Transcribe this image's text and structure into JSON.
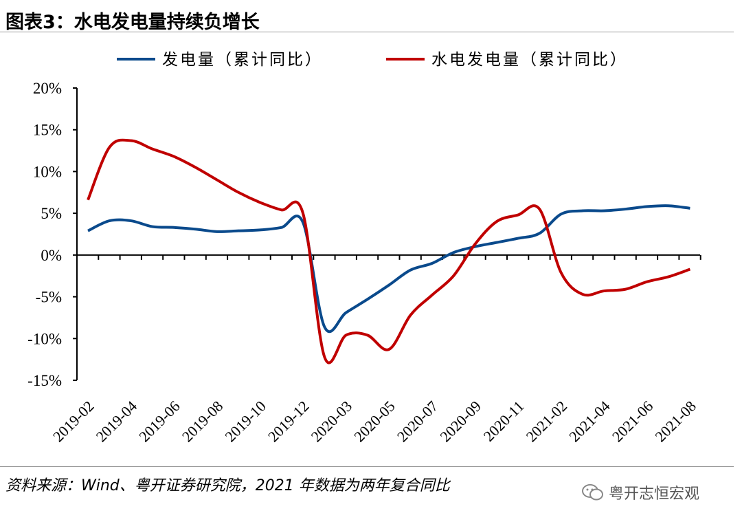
{
  "header": {
    "title": "图表3：水电发电量持续负增长"
  },
  "footer": {
    "source": "资料来源：Wind、粤开证券研究院，2021 年数据为两年复合同比",
    "watermark": "粤开志恒宏观"
  },
  "chart_data": {
    "type": "line",
    "title": "图表3：水电发电量持续负增长",
    "xlabel": "",
    "ylabel": "",
    "ylim": [
      -15,
      20
    ],
    "yticks": [
      "20%",
      "15%",
      "10%",
      "5%",
      "0%",
      "-5%",
      "-10%",
      "-15%"
    ],
    "ytick_values": [
      20,
      15,
      10,
      5,
      0,
      -5,
      -10,
      -15
    ],
    "legend_position": "top",
    "x": [
      "2019-02",
      "2019-03",
      "2019-04",
      "2019-05",
      "2019-06",
      "2019-07",
      "2019-08",
      "2019-09",
      "2019-10",
      "2019-11",
      "2019-12",
      "2020-02",
      "2020-03",
      "2020-04",
      "2020-05",
      "2020-06",
      "2020-07",
      "2020-08",
      "2020-09",
      "2020-10",
      "2020-11",
      "2020-12",
      "2021-02",
      "2021-03",
      "2021-04",
      "2021-05",
      "2021-06",
      "2021-07",
      "2021-08"
    ],
    "xtick_labels": [
      "2019-02",
      "2019-04",
      "2019-06",
      "2019-08",
      "2019-10",
      "2019-12",
      "2020-03",
      "2020-05",
      "2020-07",
      "2020-09",
      "2020-11",
      "2021-02",
      "2021-04",
      "2021-06",
      "2021-08"
    ],
    "series": [
      {
        "name": "发电量（累计同比）",
        "color": "#0a4a8c",
        "values": [
          2.9,
          4.1,
          4.1,
          3.4,
          3.3,
          3.1,
          2.8,
          2.9,
          3.0,
          3.3,
          3.9,
          -8.6,
          -6.9,
          -5.3,
          -3.6,
          -1.8,
          -1.0,
          0.3,
          1.0,
          1.5,
          2.0,
          2.6,
          4.9,
          5.3,
          5.3,
          5.5,
          5.8,
          5.9,
          5.6
        ]
      },
      {
        "name": "水电发电量（累计同比）",
        "color": "#c00000",
        "values": [
          6.6,
          12.9,
          13.7,
          12.7,
          11.8,
          10.5,
          9.0,
          7.5,
          6.3,
          5.4,
          5.0,
          -12.2,
          -9.6,
          -9.6,
          -11.3,
          -7.2,
          -4.8,
          -2.5,
          1.3,
          4.0,
          4.8,
          5.5,
          -2.1,
          -4.7,
          -4.3,
          -4.1,
          -3.2,
          -2.6,
          -1.7
        ]
      }
    ]
  }
}
